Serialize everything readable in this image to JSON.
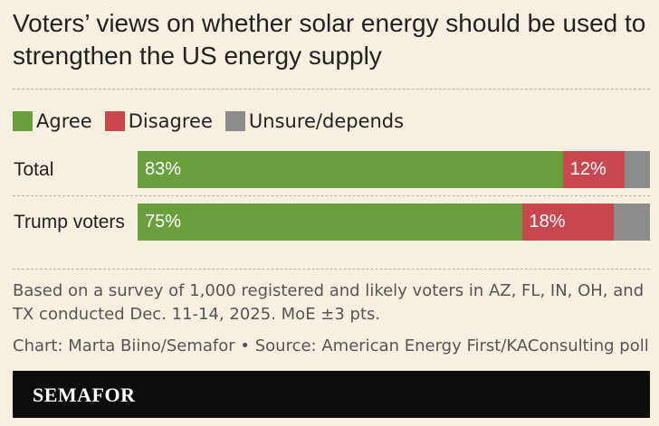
{
  "chart_data": {
    "type": "bar",
    "orientation": "horizontal-stacked",
    "title": "Voters’ views on whether solar energy should be used to strengthen the US energy supply",
    "legend": [
      {
        "name": "Agree",
        "color": "#6a9f3e"
      },
      {
        "name": "Disagree",
        "color": "#c9474f"
      },
      {
        "name": "Unsure/depends",
        "color": "#8c8c8c"
      }
    ],
    "categories": [
      "Total",
      "Trump voters"
    ],
    "series": [
      {
        "name": "Agree",
        "values": [
          83,
          75
        ],
        "labels": [
          "83%",
          "75%"
        ]
      },
      {
        "name": "Disagree",
        "values": [
          12,
          18
        ],
        "labels": [
          "12%",
          "18%"
        ]
      },
      {
        "name": "Unsure/depends",
        "values": [
          5,
          7
        ],
        "labels": [
          "",
          ""
        ]
      }
    ],
    "xlim": [
      0,
      100
    ]
  },
  "notes": {
    "survey": "Based on a survey of 1,000 registered and likely voters in AZ, FL, IN, OH, and TX conducted Dec. 11-14, 2025. MoE ±3 pts.",
    "credit": "Chart: Marta Biino/Semafor • Source: American Energy First/KAConsulting poll"
  },
  "brand": "SEMAFOR"
}
